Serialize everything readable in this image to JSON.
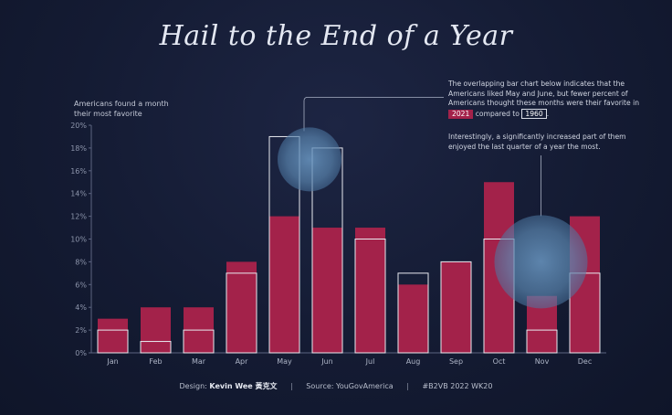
{
  "title": "Hail to the End of a Year",
  "y_axis_note": "Americans found a month their most favorite",
  "annotation_1": {
    "before": "The overlapping bar chart below indicates that the Americans liked May and June, but fewer percent of Americans thought these months were their favorite in",
    "year_a": "2021",
    "middle": "compared to",
    "year_b": "1960",
    "end": "."
  },
  "annotation_2": "Interestingly, a significantly increased part of them enjoyed the last quarter of a year the most.",
  "footer": {
    "design_prefix": "Design:",
    "designer": "Kevin Wee 黃克文",
    "source": "Source: YouGovAmerica",
    "tag": "#B2VB 2022 WK20"
  },
  "colors": {
    "bar_2021": "#a3224a",
    "bar_1960_outline": "#e8eaf0",
    "highlight_circle": "#5a86b0",
    "background": "#141b33"
  },
  "chart_data": {
    "type": "bar",
    "categories": [
      "Jan",
      "Feb",
      "Mar",
      "Apr",
      "May",
      "Jun",
      "Jul",
      "Aug",
      "Sep",
      "Oct",
      "Nov",
      "Dec"
    ],
    "series": [
      {
        "values": [
          3,
          4,
          4,
          8,
          12,
          11,
          11,
          6,
          8,
          15,
          5,
          12
        ]
      },
      {
        "values": [
          2,
          1,
          2,
          7,
          19,
          18,
          10,
          7,
          8,
          10,
          2,
          7
        ]
      }
    ],
    "y_ticks": [
      "0%",
      "2%",
      "4%",
      "6%",
      "8%",
      "10%",
      "12%",
      "14%",
      "16%",
      "18%",
      "20%"
    ],
    "ylim": [
      0,
      20
    ],
    "grid": false,
    "highlights": [
      {
        "months": [
          "May",
          "Jun"
        ],
        "center_value": 17
      },
      {
        "months": [
          "Oct",
          "Nov",
          "Dec"
        ],
        "center_value": 8
      }
    ]
  }
}
